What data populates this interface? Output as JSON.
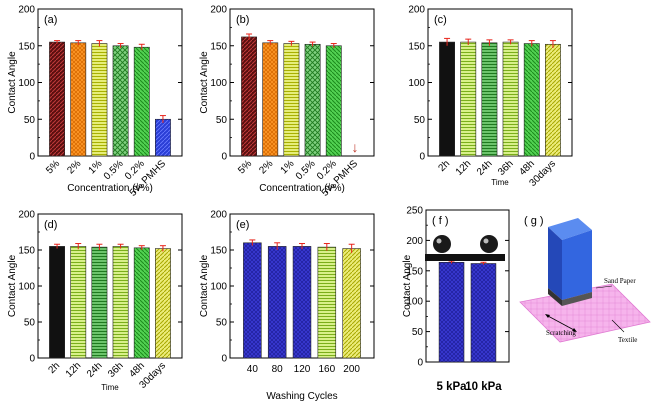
{
  "colors": {
    "brown": "#8b1a1a",
    "orange": "#ff8c1a",
    "yellowgreen": "#c8d62a",
    "green": "#2ca02c",
    "lime": "#3cc43c",
    "blue": "#2a3ed6",
    "black": "#111111",
    "lightgreen": "#b8e04a",
    "darkgreen": "#3aa83a",
    "olive": "#c8c82a",
    "error": "#e8231a",
    "violet": "#3b3bcc",
    "pink": "#f4a9e8",
    "box": "#2f5fd6"
  },
  "chart_data": [
    {
      "id": "a",
      "panel_label": "(a)",
      "type": "bar",
      "categories": [
        "5%",
        "2%",
        "1%",
        "0.5%",
        "0.2%",
        "5% PMHS"
      ],
      "values": [
        155,
        154,
        153,
        150,
        148,
        50
      ],
      "errors": [
        2,
        3,
        4,
        3,
        4,
        5
      ],
      "ylabel": "Contact Angle",
      "xlabel": "Concentration (v%)",
      "ylim": [
        0,
        200
      ],
      "yticks": [
        0,
        50,
        100,
        150,
        200
      ],
      "bar_colors": [
        "brown",
        "orange",
        "yellowgreen",
        "green",
        "lime",
        "blue"
      ]
    },
    {
      "id": "b",
      "panel_label": "(b)",
      "type": "bar",
      "categories": [
        "5%",
        "2%",
        "1%",
        "0.5%",
        "0.2%",
        "5% PMHS"
      ],
      "values": [
        162,
        154,
        153,
        152,
        150,
        0
      ],
      "errors": [
        4,
        3,
        3,
        3,
        3,
        0
      ],
      "ylabel": "Contact Angle",
      "xlabel": "Concentration (v%)",
      "ylim": [
        0,
        200
      ],
      "yticks": [
        0,
        50,
        100,
        150,
        200
      ],
      "bar_colors": [
        "brown",
        "orange",
        "yellowgreen",
        "green",
        "lime",
        "blue"
      ],
      "annotation": "↓"
    },
    {
      "id": "c",
      "panel_label": "(c)",
      "type": "bar",
      "categories": [
        "2h",
        "12h",
        "24h",
        "36h",
        "48h",
        "30days"
      ],
      "values": [
        155,
        155,
        154,
        155,
        153,
        152
      ],
      "errors": [
        5,
        4,
        4,
        3,
        4,
        5
      ],
      "ylabel": "",
      "xlabel": "Time",
      "ylim": [
        0,
        200
      ],
      "yticks": [
        0,
        50,
        100,
        150,
        200
      ],
      "bar_colors": [
        "black",
        "lightgreen",
        "darkgreen",
        "lightgreen",
        "lime",
        "olive"
      ]
    },
    {
      "id": "d",
      "panel_label": "(d)",
      "type": "bar",
      "categories": [
        "2h",
        "12h",
        "24h",
        "36h",
        "48h",
        "30days"
      ],
      "values": [
        155,
        155,
        154,
        155,
        153,
        152
      ],
      "errors": [
        3,
        4,
        4,
        3,
        3,
        4
      ],
      "ylabel": "Contact Angle",
      "xlabel": "Time",
      "ylim": [
        0,
        200
      ],
      "yticks": [
        0,
        50,
        100,
        150,
        200
      ],
      "bar_colors": [
        "black",
        "lightgreen",
        "darkgreen",
        "lightgreen",
        "lime",
        "olive"
      ]
    },
    {
      "id": "e",
      "panel_label": "(e)",
      "type": "bar",
      "categories": [
        "40",
        "80",
        "120",
        "160",
        "200"
      ],
      "values": [
        160,
        155,
        155,
        154,
        152
      ],
      "errors": [
        4,
        5,
        4,
        5,
        6
      ],
      "ylabel": "Contact Angle",
      "xlabel": "Washing Cycles",
      "ylim": [
        0,
        200
      ],
      "yticks": [
        0,
        50,
        100,
        150,
        200
      ],
      "bar_colors": [
        "violet",
        "violet",
        "violet",
        "lightgreen",
        "olive"
      ]
    },
    {
      "id": "f",
      "panel_label": "( f )",
      "type": "bar",
      "categories": [
        "5 kPa",
        "10 kPa"
      ],
      "values": [
        164,
        162
      ],
      "errors": [
        2,
        2
      ],
      "ylabel": "Contact Angle",
      "xlabel": "",
      "ylim": [
        0,
        250
      ],
      "yticks": [
        0,
        50,
        100,
        150,
        200,
        250
      ],
      "bar_colors": [
        "violet",
        "violet"
      ]
    }
  ],
  "panel_g": {
    "label": "( g )",
    "sand_paper": "Sand Paper",
    "scratching": "Scratching",
    "textile": "Textile"
  }
}
